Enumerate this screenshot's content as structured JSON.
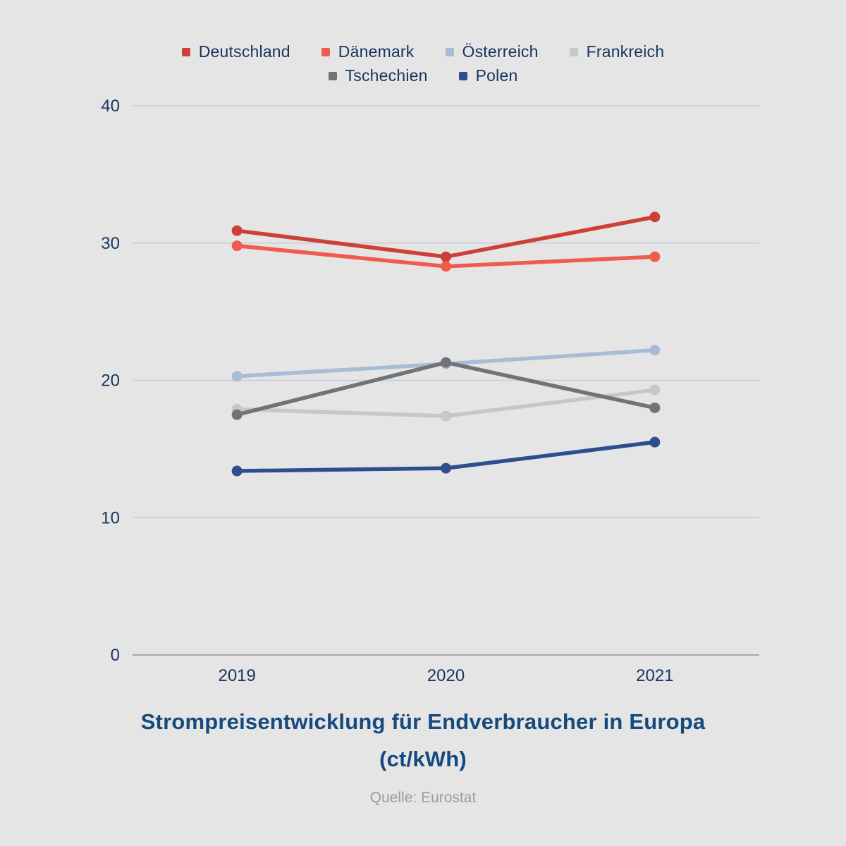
{
  "chart_data": {
    "type": "line",
    "title": "Strompreisentwicklung für Endverbraucher in Europa",
    "subtitle": "(ct/kWh)",
    "source": "Quelle: Eurostat",
    "x": [
      "2019",
      "2020",
      "2021"
    ],
    "yticks": [
      0,
      10,
      20,
      30,
      40
    ],
    "ylim": [
      0,
      40
    ],
    "grid": true,
    "legend_position": "top",
    "legend_rows": [
      [
        "Deutschland",
        "Dänemark",
        "Österreich",
        "Frankreich"
      ],
      [
        "Tschechien",
        "Polen"
      ]
    ],
    "series": [
      {
        "name": "Deutschland",
        "color": "#cc4038",
        "values": [
          30.9,
          29.0,
          31.9
        ]
      },
      {
        "name": "Dänemark",
        "color": "#f15b4d",
        "values": [
          29.8,
          28.3,
          29.0
        ]
      },
      {
        "name": "Österreich",
        "color": "#a8bcd4",
        "values": [
          20.3,
          21.2,
          22.2
        ]
      },
      {
        "name": "Frankreich",
        "color": "#c3c9c6",
        "values": [
          17.9,
          17.4,
          19.3
        ]
      },
      {
        "name": "Tschechien",
        "color": "#727376",
        "values": [
          17.5,
          21.3,
          18.0
        ]
      },
      {
        "name": "Polen",
        "color": "#2c4e8e",
        "values": [
          13.4,
          13.6,
          15.5
        ]
      }
    ]
  },
  "colors": {
    "background": "#e5e5e5",
    "text": "#16355d",
    "title": "#154a7e",
    "source": "#9c9c9c",
    "gridline": "#c6cdd5",
    "axisline": "#9ea9b7"
  }
}
